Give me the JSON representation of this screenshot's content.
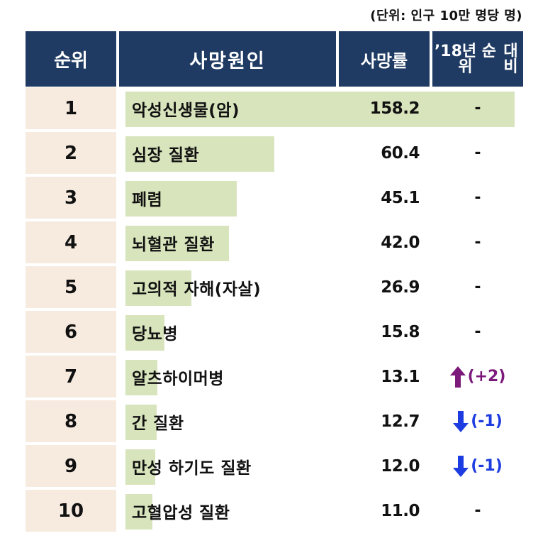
{
  "unit_note": "(단위: 인구 10만 명당 명)",
  "header": {
    "rank": "순위",
    "cause": "사망원인",
    "rate": "사망률",
    "change_line1": "’18년 순위",
    "change_line2": "대비"
  },
  "colors": {
    "header_bg": "#1f3b63",
    "rank_bg": "#f7ebe0",
    "bar": "#d8e4bc",
    "up": "#7b1a7b",
    "down": "#1c3be0"
  },
  "chart_data": {
    "type": "table",
    "bar_max": 158.2,
    "rows": [
      {
        "rank": "1",
        "cause": "악성신생물(암)",
        "rate": 158.2,
        "rate_label": "158.2",
        "change": "-",
        "direction": "none"
      },
      {
        "rank": "2",
        "cause": "심장 질환",
        "rate": 60.4,
        "rate_label": "60.4",
        "change": "-",
        "direction": "none"
      },
      {
        "rank": "3",
        "cause": "폐렴",
        "rate": 45.1,
        "rate_label": "45.1",
        "change": "-",
        "direction": "none"
      },
      {
        "rank": "4",
        "cause": "뇌혈관 질환",
        "rate": 42.0,
        "rate_label": "42.0",
        "change": "-",
        "direction": "none"
      },
      {
        "rank": "5",
        "cause": "고의적 자해(자살)",
        "rate": 26.9,
        "rate_label": "26.9",
        "change": "-",
        "direction": "none"
      },
      {
        "rank": "6",
        "cause": "당뇨병",
        "rate": 15.8,
        "rate_label": "15.8",
        "change": "-",
        "direction": "none"
      },
      {
        "rank": "7",
        "cause": "알츠하이머병",
        "rate": 13.1,
        "rate_label": "13.1",
        "change": "(+2)",
        "direction": "up"
      },
      {
        "rank": "8",
        "cause": "간 질환",
        "rate": 12.7,
        "rate_label": "12.7",
        "change": "(-1)",
        "direction": "down"
      },
      {
        "rank": "9",
        "cause": "만성 하기도 질환",
        "rate": 12.0,
        "rate_label": "12.0",
        "change": "(-1)",
        "direction": "down"
      },
      {
        "rank": "10",
        "cause": "고혈압성 질환",
        "rate": 11.0,
        "rate_label": "11.0",
        "change": "-",
        "direction": "none"
      }
    ]
  }
}
